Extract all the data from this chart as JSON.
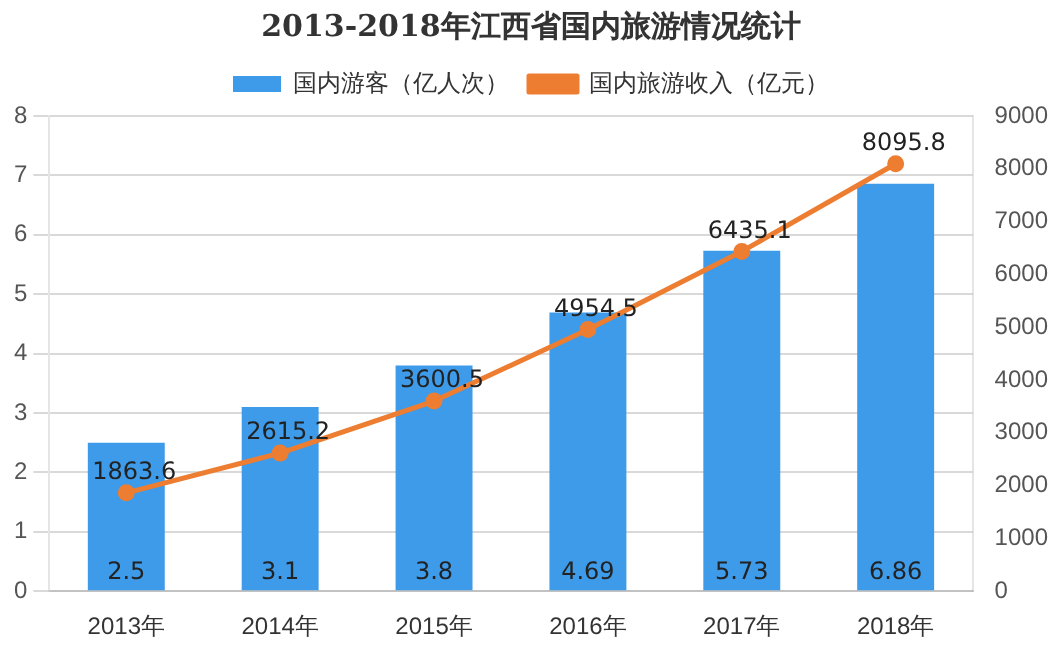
{
  "chart_data": {
    "type": "bar",
    "title": "2013-2018年江西省国内旅游情况统计",
    "categories": [
      "2013年",
      "2014年",
      "2015年",
      "2016年",
      "2017年",
      "2018年"
    ],
    "series": [
      {
        "name": "国内游客（亿人次）",
        "color": "#3d9be9",
        "values": [
          2.5,
          3.1,
          3.8,
          4.69,
          5.73,
          6.86
        ]
      },
      {
        "name": "国内旅游收入（亿元）",
        "type": "line",
        "axis": "y2",
        "color": "#ed7d31",
        "values": [
          1863.6,
          2615.2,
          3600.5,
          4954.5,
          6435.1,
          8095.8
        ]
      }
    ],
    "ylim": [
      0,
      8
    ],
    "yticks": [
      0,
      1,
      2,
      3,
      4,
      5,
      6,
      7,
      8
    ],
    "y2lim": [
      0,
      9000
    ],
    "y2ticks": [
      0,
      1000,
      2000,
      3000,
      4000,
      5000,
      6000,
      7000,
      8000,
      9000
    ],
    "grid": "y",
    "legend": "top",
    "marker": "circle",
    "line_style": "solid",
    "data_labels": true
  }
}
